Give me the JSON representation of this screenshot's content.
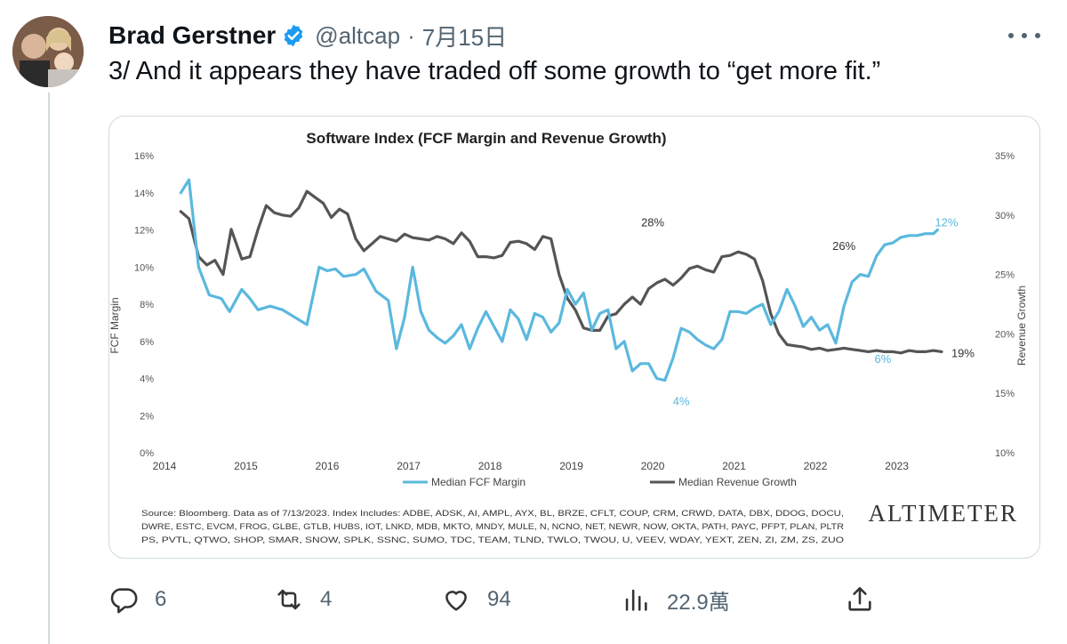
{
  "author": {
    "name": "Brad Gerstner",
    "handle": "@altcap",
    "separator": "·",
    "date": "7月15日",
    "verified": true
  },
  "tweet": {
    "text": "3/ And it appears they have traded off some growth to “get more fit.”"
  },
  "actions": {
    "reply_count": "6",
    "retweet_count": "4",
    "like_count": "94",
    "views_count": "22.9萬"
  },
  "icons": {
    "verified": "verified-badge-icon",
    "more": "more-options-icon",
    "reply": "reply-icon",
    "retweet": "retweet-icon",
    "like": "like-icon",
    "views": "views-icon",
    "share": "share-icon"
  },
  "colors": {
    "fcf": "#5bb8de",
    "revenue": "#555555",
    "verified": "#1d9bf0"
  },
  "chart_data": {
    "type": "line",
    "title": "Software Index (FCF Margin and Revenue Growth)",
    "ylabel_left": "FCF Margin",
    "ylabel_right": "Revenue Growth",
    "y_left_ticks": [
      "0%",
      "2%",
      "4%",
      "6%",
      "8%",
      "10%",
      "12%",
      "14%",
      "16%"
    ],
    "y_right_ticks": [
      "10%",
      "15%",
      "20%",
      "25%",
      "30%",
      "35%"
    ],
    "x_ticks": [
      "2014",
      "2015",
      "2016",
      "2017",
      "2018",
      "2019",
      "2020",
      "2021",
      "2022",
      "2023"
    ],
    "ylim_left": [
      0,
      16
    ],
    "ylim_right": [
      10,
      35
    ],
    "xlim": [
      2014.0,
      2023.9
    ],
    "legend_position": "bottom",
    "series": [
      {
        "name": "Median FCF Margin",
        "axis": "left",
        "color": "#5bb8de",
        "x": [
          2014.2,
          2014.3,
          2014.42,
          2014.55,
          2014.7,
          2014.8,
          2014.95,
          2015.05,
          2015.15,
          2015.3,
          2015.45,
          2015.6,
          2015.75,
          2015.9,
          2016.0,
          2016.1,
          2016.2,
          2016.35,
          2016.45,
          2016.6,
          2016.75,
          2016.85,
          2016.95,
          2017.05,
          2017.15,
          2017.25,
          2017.35,
          2017.45,
          2017.55,
          2017.65,
          2017.75,
          2017.85,
          2017.95,
          2018.05,
          2018.15,
          2018.25,
          2018.35,
          2018.45,
          2018.55,
          2018.65,
          2018.75,
          2018.85,
          2018.95,
          2019.05,
          2019.15,
          2019.25,
          2019.35,
          2019.45,
          2019.55,
          2019.65,
          2019.75,
          2019.85,
          2019.95,
          2020.05,
          2020.15,
          2020.25,
          2020.35,
          2020.45,
          2020.55,
          2020.65,
          2020.75,
          2020.85,
          2020.95,
          2021.05,
          2021.15,
          2021.25,
          2021.35,
          2021.45,
          2021.55,
          2021.65,
          2021.75,
          2021.85,
          2021.95,
          2022.05,
          2022.15,
          2022.25,
          2022.35,
          2022.45,
          2022.55,
          2022.65,
          2022.75,
          2022.85,
          2022.95,
          2023.05,
          2023.15,
          2023.25,
          2023.35,
          2023.45,
          2023.5
        ],
        "y": [
          14.0,
          14.7,
          10.0,
          8.5,
          8.3,
          7.6,
          8.8,
          8.3,
          7.7,
          7.9,
          7.7,
          7.3,
          6.9,
          10.0,
          9.8,
          9.9,
          9.5,
          9.6,
          9.9,
          8.7,
          8.2,
          5.6,
          7.3,
          10.0,
          7.6,
          6.6,
          6.2,
          5.9,
          6.3,
          6.9,
          5.6,
          6.7,
          7.6,
          6.8,
          6.0,
          7.7,
          7.2,
          6.1,
          7.5,
          7.3,
          6.5,
          7.0,
          8.8,
          8.0,
          8.6,
          6.6,
          7.5,
          7.7,
          5.6,
          6.0,
          4.4,
          4.8,
          4.8,
          4.0,
          3.9,
          5.1,
          6.7,
          6.5,
          6.1,
          5.8,
          5.6,
          6.1,
          7.6,
          7.6,
          7.5,
          7.8,
          8.0,
          6.9,
          7.6,
          8.8,
          7.9,
          6.8,
          7.3,
          6.6,
          6.9,
          5.9,
          7.9,
          9.2,
          9.6,
          9.5,
          10.6,
          11.2,
          11.3,
          11.6,
          11.7,
          11.7,
          11.8,
          11.8,
          12.0
        ]
      },
      {
        "name": "Median Revenue Growth",
        "axis": "right",
        "color": "#555555",
        "x": [
          2014.2,
          2014.3,
          2014.42,
          2014.52,
          2014.62,
          2014.72,
          2014.82,
          2014.95,
          2015.05,
          2015.15,
          2015.25,
          2015.35,
          2015.45,
          2015.55,
          2015.65,
          2015.75,
          2015.85,
          2015.95,
          2016.05,
          2016.15,
          2016.25,
          2016.35,
          2016.45,
          2016.55,
          2016.65,
          2016.75,
          2016.85,
          2016.95,
          2017.05,
          2017.15,
          2017.25,
          2017.35,
          2017.45,
          2017.55,
          2017.65,
          2017.75,
          2017.85,
          2017.95,
          2018.05,
          2018.15,
          2018.25,
          2018.35,
          2018.45,
          2018.55,
          2018.65,
          2018.75,
          2018.85,
          2018.95,
          2019.05,
          2019.15,
          2019.25,
          2019.35,
          2019.45,
          2019.55,
          2019.65,
          2019.75,
          2019.85,
          2019.95,
          2020.05,
          2020.15,
          2020.25,
          2020.35,
          2020.45,
          2020.55,
          2020.65,
          2020.75,
          2020.85,
          2020.95,
          2021.05,
          2021.15,
          2021.25,
          2021.35,
          2021.45,
          2021.55,
          2021.65,
          2021.75,
          2021.85,
          2021.95,
          2022.05,
          2022.15,
          2022.25,
          2022.35,
          2022.45,
          2022.55,
          2022.65,
          2022.75,
          2022.85,
          2022.95,
          2023.05,
          2023.15,
          2023.25,
          2023.35,
          2023.45,
          2023.55
        ],
        "y": [
          30.3,
          29.7,
          26.5,
          25.8,
          26.2,
          25.0,
          28.8,
          26.3,
          26.5,
          28.8,
          30.8,
          30.2,
          30.0,
          29.9,
          30.6,
          32.0,
          31.5,
          31.0,
          29.8,
          30.5,
          30.1,
          28.0,
          27.0,
          27.6,
          28.2,
          28.0,
          27.8,
          28.4,
          28.1,
          28.0,
          27.9,
          28.2,
          28.0,
          27.6,
          28.5,
          27.8,
          26.5,
          26.5,
          26.4,
          26.6,
          27.7,
          27.8,
          27.6,
          27.1,
          28.2,
          28.0,
          25.0,
          23.0,
          22.0,
          20.5,
          20.3,
          20.3,
          21.5,
          21.7,
          22.5,
          23.1,
          22.5,
          23.8,
          24.3,
          24.6,
          24.1,
          24.7,
          25.5,
          25.7,
          25.4,
          25.2,
          26.5,
          26.6,
          26.9,
          26.7,
          26.3,
          24.5,
          21.7,
          20.0,
          19.1,
          19.0,
          18.9,
          18.7,
          18.8,
          18.6,
          18.7,
          18.8,
          18.7,
          18.6,
          18.5,
          18.6,
          18.5,
          18.5,
          18.4,
          18.6,
          18.5,
          18.5,
          18.6,
          18.5
        ]
      }
    ],
    "annotations": [
      {
        "text": "28%",
        "series": "Median Revenue Growth",
        "x": 2020.0,
        "y": 28.0
      },
      {
        "text": "26%",
        "series": "Median Revenue Growth",
        "x": 2022.35,
        "y": 26.0
      },
      {
        "text": "19%",
        "series": "Median Revenue Growth",
        "x": 2023.55,
        "y": 18.5
      },
      {
        "text": "12%",
        "series": "Median FCF Margin",
        "x": 2023.5,
        "y": 12.0
      },
      {
        "text": "6%",
        "series": "Median FCF Margin",
        "x": 2022.85,
        "y": 6.0
      },
      {
        "text": "4%",
        "series": "Median FCF Margin",
        "x": 2020.35,
        "y": 4.0
      }
    ],
    "legend": [
      {
        "name": "Median FCF Margin",
        "color": "#5bb8de"
      },
      {
        "name": "Median Revenue Growth",
        "color": "#555555"
      }
    ],
    "source_note": [
      "Source: Bloomberg. Data as of 7/13/2023. Index Includes: ADBE, ADSK, AI, AMPL, AYX, BL, BRZE, CFLT, COUP, CRM, CRWD, DATA, DBX, DDOG, DOCU,",
      "DWRE, ESTC, EVCM, FROG, GLBE, GTLB, HUBS, IOT, LNKD, MDB, MKTO, MNDY, MULE, N, NCNO, NET, NEWR, NOW, OKTA, PATH, PAYC, PFPT, PLAN, PLTR",
      "PS, PVTL, QTWO, SHOP, SMAR, SNOW, SPLK, SSNC, SUMO, TDC, TEAM, TLND, TWLO, TWOU, U, VEEV, WDAY, YEXT, ZEN, ZI, ZM, ZS, ZUO"
    ],
    "watermark": "ALTIMETER"
  }
}
